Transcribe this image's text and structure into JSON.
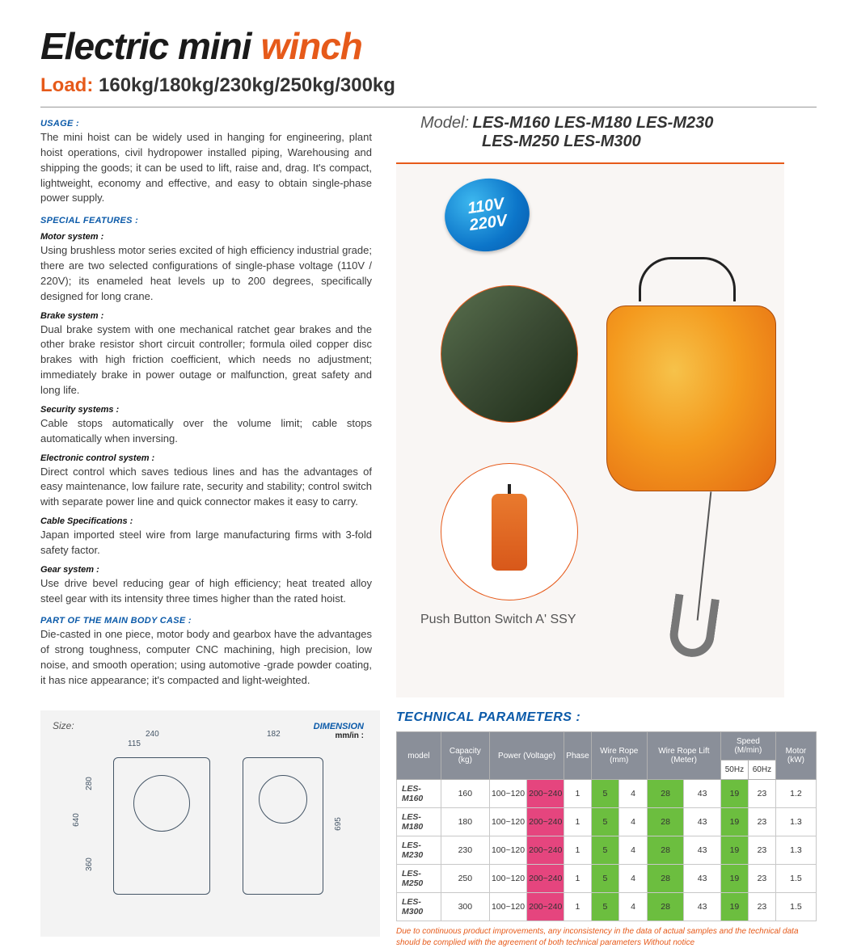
{
  "title": {
    "black": "Electric mini",
    "orange": "winch"
  },
  "load": {
    "label": "Load:",
    "values": "160kg/180kg/230kg/250kg/300kg"
  },
  "left_sections": {
    "usage": {
      "label": "USAGE :",
      "text": "The mini hoist can be widely used in hanging for engineering, plant hoist operations, civil hydropower installed piping, Warehousing and shipping the goods; it can be used to  lift, raise and, drag. It's compact, lightweight, economy and effective, and easy to obtain single-phase power supply."
    },
    "special": {
      "label": "SPECIAL FEATURES :"
    },
    "motor": {
      "label": "Motor system :",
      "text": "Using brushless motor series excited of high efficiency industrial grade; there are two selected configurations of single-phase voltage (110V / 220V); its enameled heat levels up to 200 degrees, specifically designed for long crane."
    },
    "brake": {
      "label": "Brake system :",
      "text": "Dual brake system with one mechanical ratchet gear brakes and the other brake resistor short circuit controller; formula oiled copper disc brakes with high friction coefficient, which needs no adjustment;  immediately brake in power outage or malfunction, great safety and long life."
    },
    "security": {
      "label": "Security systems :",
      "text": "Cable stops automatically over the volume limit; cable stops automatically when inversing."
    },
    "econtrol": {
      "label": "Electronic control system :",
      "text": "Direct control which saves tedious lines and has the advantages of easy maintenance, low failure rate, security and stability; control switch with separate power line and quick connector makes it easy to carry."
    },
    "cable": {
      "label": "Cable Specifications :",
      "text": "Japan imported steel wire from large manufacturing firms with 3-fold safety factor."
    },
    "gear": {
      "label": "Gear system :",
      "text": "Use drive bevel reducing gear of high efficiency; heat treated alloy steel gear with its intensity three times higher than the rated hoist."
    },
    "mainbody": {
      "label": "PART OF THE MAIN BODY CASE :",
      "text": "Die-casted in one piece, motor body and gearbox have the advantages of strong toughness, computer CNC machining,  high precision, low noise, and smooth operation; using  automotive -grade powder coating, it has nice appearance; it's compacted and light-weighted."
    }
  },
  "model": {
    "label": "Model:",
    "line1": "LES-M160  LES-M180  LES-M230",
    "line2": "LES-M250  LES-M300"
  },
  "badge": {
    "l1": "110V",
    "l2": "220V"
  },
  "push_caption": "Push Button Switch A'   SSY",
  "size": {
    "label": "Size:",
    "dim_label": "DIMENSION",
    "dim_unit": "mm/in :",
    "dims": {
      "w1": "240",
      "w2": "115",
      "w3": "182",
      "h1": "640",
      "h2": "280",
      "h3": "360",
      "h4": "695"
    }
  },
  "tech": {
    "title": "TECHNICAL PARAMETERS :",
    "headers": [
      "model",
      "Capacity (kg)",
      "Power (Voltage)",
      "Phase",
      "Wire Rope (mm)",
      "Wire Rope Lift (Meter)",
      "Speed (M/min)",
      "Motor (kW)"
    ],
    "speed_sub": [
      "50Hz",
      "60Hz"
    ],
    "rows": [
      {
        "model": "LES-M160",
        "cap": "160",
        "pv1": "100~120",
        "pv2": "200~240",
        "phase": "1",
        "wr1": "5",
        "wr2": "4",
        "lift1": "28",
        "lift2": "43",
        "sp1": "19",
        "sp2": "23",
        "kw": "1.2"
      },
      {
        "model": "LES-M180",
        "cap": "180",
        "pv1": "100~120",
        "pv2": "200~240",
        "phase": "1",
        "wr1": "5",
        "wr2": "4",
        "lift1": "28",
        "lift2": "43",
        "sp1": "19",
        "sp2": "23",
        "kw": "1.3"
      },
      {
        "model": "LES-M230",
        "cap": "230",
        "pv1": "100~120",
        "pv2": "200~240",
        "phase": "1",
        "wr1": "5",
        "wr2": "4",
        "lift1": "28",
        "lift2": "43",
        "sp1": "19",
        "sp2": "23",
        "kw": "1.3"
      },
      {
        "model": "LES-M250",
        "cap": "250",
        "pv1": "100~120",
        "pv2": "200~240",
        "phase": "1",
        "wr1": "5",
        "wr2": "4",
        "lift1": "28",
        "lift2": "43",
        "sp1": "19",
        "sp2": "23",
        "kw": "1.5"
      },
      {
        "model": "LES-M300",
        "cap": "300",
        "pv1": "100~120",
        "pv2": "200~240",
        "phase": "1",
        "wr1": "5",
        "wr2": "4",
        "lift1": "28",
        "lift2": "43",
        "sp1": "19",
        "sp2": "23",
        "kw": "1.5"
      }
    ],
    "disclaimer": "Due to continuous product improvements, any inconsistency in the data of actual samples  and the technical data should be complied with the agreement of both technical parameters  Without notice"
  },
  "colors": {
    "orange": "#e65a1a",
    "blue": "#0b5aa9",
    "pink": "#e5457e",
    "green": "#6cbe3f",
    "table_header": "#8a8f99"
  }
}
